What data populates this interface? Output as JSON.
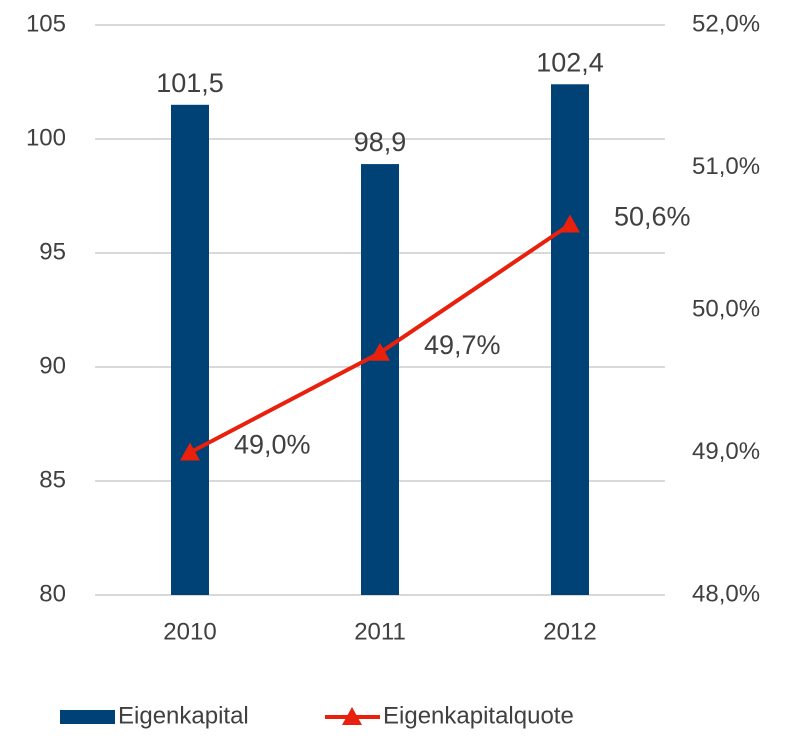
{
  "chart_data": {
    "type": "bar",
    "categories": [
      "2010",
      "2011",
      "2012"
    ],
    "series": [
      {
        "name": "Eigenkapital",
        "type": "bar",
        "color": "#004276",
        "axis": "y",
        "values": [
          101.5,
          98.9,
          102.4
        ],
        "value_labels": [
          "101,5",
          "98,9",
          "102,4"
        ]
      },
      {
        "name": "Eigenkapitalquote",
        "type": "line",
        "color": "#e8200c",
        "axis": "y2",
        "values": [
          49.0,
          49.7,
          50.6
        ],
        "value_labels": [
          "49,0%",
          "49,7%",
          "50,6%"
        ]
      }
    ],
    "ylim": [
      80,
      105
    ],
    "yticks": [
      80,
      85,
      90,
      95,
      100,
      105
    ],
    "y2lim": [
      48,
      52
    ],
    "y2ticks": [
      {
        "value": 48,
        "label": "48,0%"
      },
      {
        "value": 49,
        "label": "49,0%"
      },
      {
        "value": 50,
        "label": "50,0%"
      },
      {
        "value": 51,
        "label": "51,0%"
      },
      {
        "value": 52,
        "label": "52,0%"
      }
    ],
    "grid": true,
    "legend": "bottom"
  }
}
